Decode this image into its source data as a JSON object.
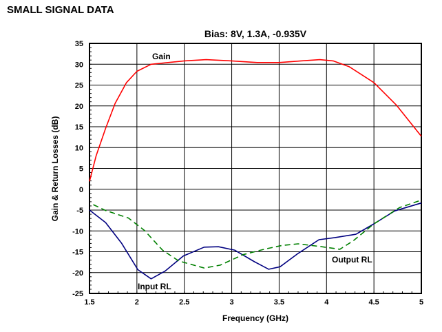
{
  "heading": "SMALL SIGNAL DATA",
  "chart_data": {
    "type": "line",
    "title": "Bias: 8V, 1.3A, -0.935V",
    "xlabel": "Frequency (GHz)",
    "ylabel": "Gain & Return Losses (dB)",
    "xlim": [
      1.5,
      5
    ],
    "ylim": [
      -25,
      35
    ],
    "xticks": [
      "1.5",
      "2",
      "2.5",
      "3",
      "3.5",
      "4",
      "4.5",
      "5"
    ],
    "yticks": [
      "35",
      "30",
      "25",
      "20",
      "15",
      "10",
      "5",
      "0",
      "-5",
      "-10",
      "-15",
      "-20",
      "-25"
    ],
    "grid": true,
    "series": [
      {
        "name": "Gain",
        "color": "#ff0000",
        "dash": false,
        "x": [
          1.5,
          1.57,
          1.67,
          1.77,
          1.89,
          2.0,
          2.15,
          2.5,
          2.73,
          3.0,
          3.27,
          3.5,
          3.73,
          3.93,
          4.07,
          4.24,
          4.5,
          4.74,
          5.0
        ],
        "y": [
          1.9,
          8,
          14.6,
          20.6,
          25.6,
          28.3,
          30,
          30.8,
          31.1,
          30.8,
          30.4,
          30.4,
          30.8,
          31.1,
          30.8,
          29.4,
          25.6,
          20.1,
          12.7
        ]
      },
      {
        "name": "Input RL",
        "color": "#000080",
        "dash": false,
        "x": [
          1.5,
          1.67,
          1.84,
          2.01,
          2.15,
          2.3,
          2.49,
          2.71,
          2.86,
          3.03,
          3.24,
          3.39,
          3.51,
          3.7,
          3.92,
          4.09,
          4.31,
          4.5,
          4.72,
          5.0
        ],
        "y": [
          -5,
          -8,
          -13,
          -19.3,
          -21.5,
          -19.6,
          -16,
          -13.9,
          -13.8,
          -14.6,
          -17.4,
          -19.2,
          -18.6,
          -15.4,
          -12.1,
          -11.6,
          -10.8,
          -8.3,
          -5.2,
          -3.3
        ]
      },
      {
        "name": "Output RL",
        "color": "#008000",
        "dash": true,
        "x": [
          1.54,
          1.67,
          1.91,
          2.08,
          2.27,
          2.44,
          2.71,
          2.88,
          3.12,
          3.36,
          3.53,
          3.7,
          3.95,
          4.14,
          4.28,
          4.5,
          4.77,
          5.0
        ],
        "y": [
          -3.7,
          -5.1,
          -6.9,
          -9.9,
          -14.6,
          -17.2,
          -18.9,
          -18.2,
          -15.7,
          -14.3,
          -13.5,
          -13.1,
          -13.8,
          -14.4,
          -12.4,
          -8.3,
          -4.4,
          -2.6
        ]
      }
    ]
  }
}
